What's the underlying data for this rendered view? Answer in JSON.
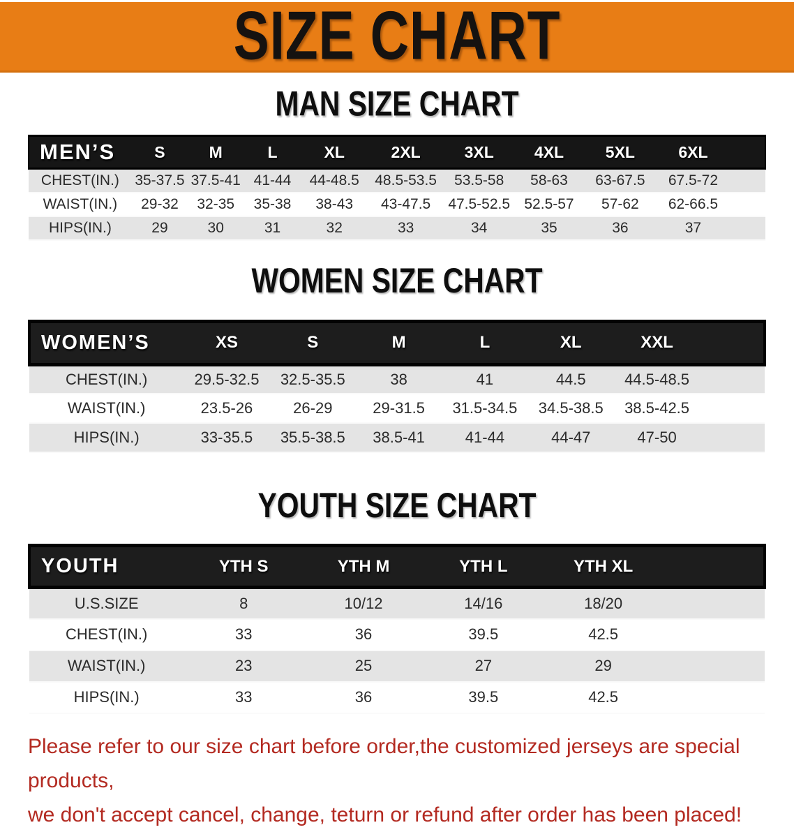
{
  "banner": {
    "title": "SIZE CHART",
    "bg_color": "#e87d15"
  },
  "sections": [
    {
      "id": "men",
      "heading": "MAN SIZE CHART",
      "category_label": "MEN’S",
      "sizes": [
        "S",
        "M",
        "L",
        "XL",
        "2XL",
        "3XL",
        "4XL",
        "5XL",
        "6XL"
      ],
      "rows": [
        {
          "label": "CHEST(IN.)",
          "values": [
            "35-37.5",
            "37.5-41",
            "41-44",
            "44-48.5",
            "48.5-53.5",
            "53.5-58",
            "58-63",
            "63-67.5",
            "67.5-72"
          ]
        },
        {
          "label": "WAIST(IN.)",
          "values": [
            "29-32",
            "32-35",
            "35-38",
            "38-43",
            "43-47.5",
            "47.5-52.5",
            "52.5-57",
            "57-62",
            "62-66.5"
          ]
        },
        {
          "label": "HIPS(IN.)",
          "values": [
            "29",
            "30",
            "31",
            "32",
            "33",
            "34",
            "35",
            "36",
            "37"
          ]
        }
      ]
    },
    {
      "id": "women",
      "heading": "WOMEN SIZE CHART",
      "category_label": "WOMEN’S",
      "sizes": [
        "XS",
        "S",
        "M",
        "L",
        "XL",
        "XXL"
      ],
      "rows": [
        {
          "label": "CHEST(IN.)",
          "values": [
            "29.5-32.5",
            "32.5-35.5",
            "38",
            "41",
            "44.5",
            "44.5-48.5"
          ]
        },
        {
          "label": "WAIST(IN.)",
          "values": [
            "23.5-26",
            "26-29",
            "29-31.5",
            "31.5-34.5",
            "34.5-38.5",
            "38.5-42.5"
          ]
        },
        {
          "label": "HIPS(IN.)",
          "values": [
            "33-35.5",
            "35.5-38.5",
            "38.5-41",
            "41-44",
            "44-47",
            "47-50"
          ]
        }
      ]
    },
    {
      "id": "youth",
      "heading": "YOUTH SIZE CHART",
      "category_label": "YOUTH",
      "sizes": [
        "YTH S",
        "YTH M",
        "YTH L",
        "YTH XL"
      ],
      "rows": [
        {
          "label": "U.S.SIZE",
          "values": [
            "8",
            "10/12",
            "14/16",
            "18/20"
          ]
        },
        {
          "label": "CHEST(IN.)",
          "values": [
            "33",
            "36",
            "39.5",
            "42.5"
          ]
        },
        {
          "label": "WAIST(IN.)",
          "values": [
            "23",
            "25",
            "27",
            "29"
          ]
        },
        {
          "label": "HIPS(IN.)",
          "values": [
            "33",
            "36",
            "39.5",
            "42.5"
          ]
        }
      ]
    }
  ],
  "footer": {
    "line1": "Please refer to our size chart before order,the customized jerseys are special products,",
    "line2": "we don't accept cancel, change, teturn or refund after order has been placed!",
    "text_color": "#b32a21"
  }
}
